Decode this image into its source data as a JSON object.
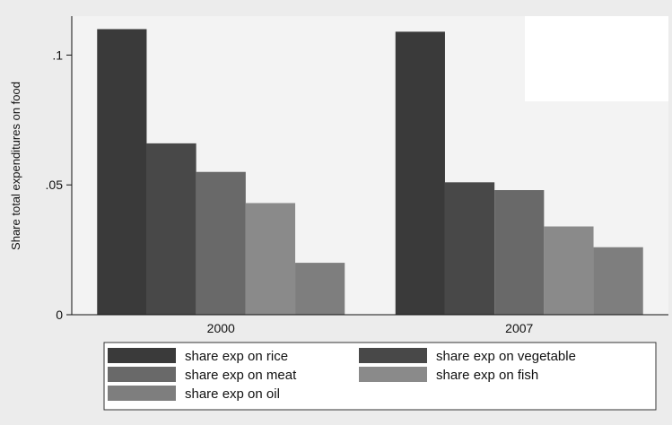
{
  "chart_data": {
    "type": "bar",
    "ylabel": "Share total expenditures on food",
    "xlabel": "",
    "categories": [
      "2000",
      "2007"
    ],
    "ylim": [
      0,
      0.115
    ],
    "yticks": [
      {
        "value": 0,
        "label": "0"
      },
      {
        "value": 0.05,
        "label": ".05"
      },
      {
        "value": 0.1,
        "label": ".1"
      }
    ],
    "grid": false,
    "legend_position": "bottom",
    "series": [
      {
        "name": "share exp on rice",
        "values": [
          0.11,
          0.109
        ],
        "color": "#3a3a3a"
      },
      {
        "name": "share exp on vegetable",
        "values": [
          0.066,
          0.051
        ],
        "color": "#484848"
      },
      {
        "name": "share exp on meat",
        "values": [
          0.055,
          0.048
        ],
        "color": "#696969"
      },
      {
        "name": "share exp on fish",
        "values": [
          0.043,
          0.034
        ],
        "color": "#8a8a8a"
      },
      {
        "name": "share exp on oil",
        "values": [
          0.02,
          0.026
        ],
        "color": "#7e7e7e"
      }
    ]
  }
}
